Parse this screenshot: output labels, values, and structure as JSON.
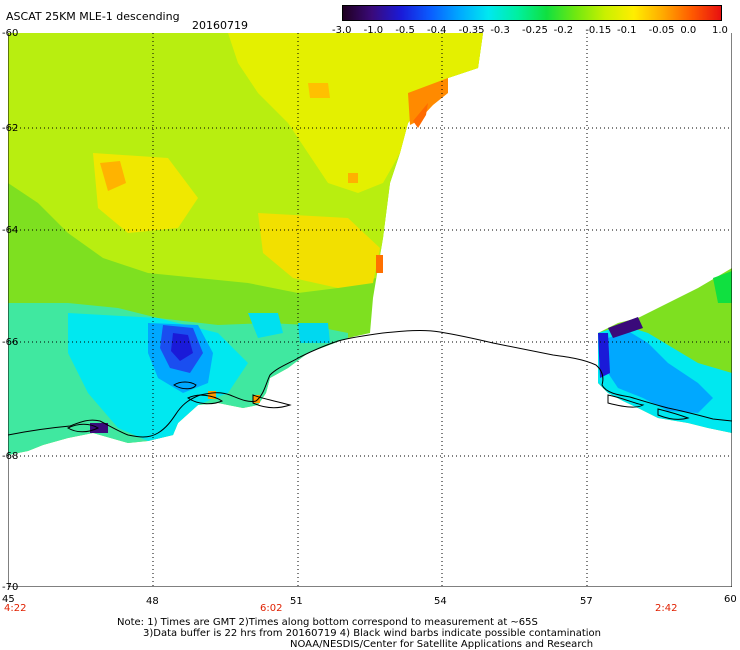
{
  "header": {
    "title": "ASCAT 25KM MLE-1 descending",
    "date": "20160719"
  },
  "colorbar": {
    "ticks": [
      "-3.0",
      "-1.0",
      "-0.5",
      "-0.4",
      "-0.35",
      "-0.3",
      "-0.25",
      "-0.2",
      "-0.15",
      "-0.1",
      "-0.05",
      "0.0",
      "1.0"
    ],
    "colors": [
      "#200020",
      "#3a0a7a",
      "#1a1ad8",
      "#0a5cff",
      "#00a8ff",
      "#00e8f0",
      "#00f0a0",
      "#10e040",
      "#70e810",
      "#c8f000",
      "#ffee00",
      "#ffaa00",
      "#ff5a00",
      "#e81010"
    ]
  },
  "axes": {
    "lat_labels": [
      "-60",
      "-62",
      "-64",
      "-66",
      "-68",
      "-70"
    ],
    "lon_labels": [
      "45",
      "48",
      "51",
      "54",
      "57",
      "60"
    ]
  },
  "times": {
    "left": "4:22",
    "mid": "6:02",
    "right": "2:42"
  },
  "notes": {
    "line1": "Note: 1) Times are GMT 2)Times along bottom correspond to measurement at ~65S",
    "line2": "3)Data buffer is 22 hrs from 20160719 4) Black wind barbs indicate possible contamination",
    "line3": "NOAA/NESDIS/Center for Satellite Applications and Research"
  }
}
